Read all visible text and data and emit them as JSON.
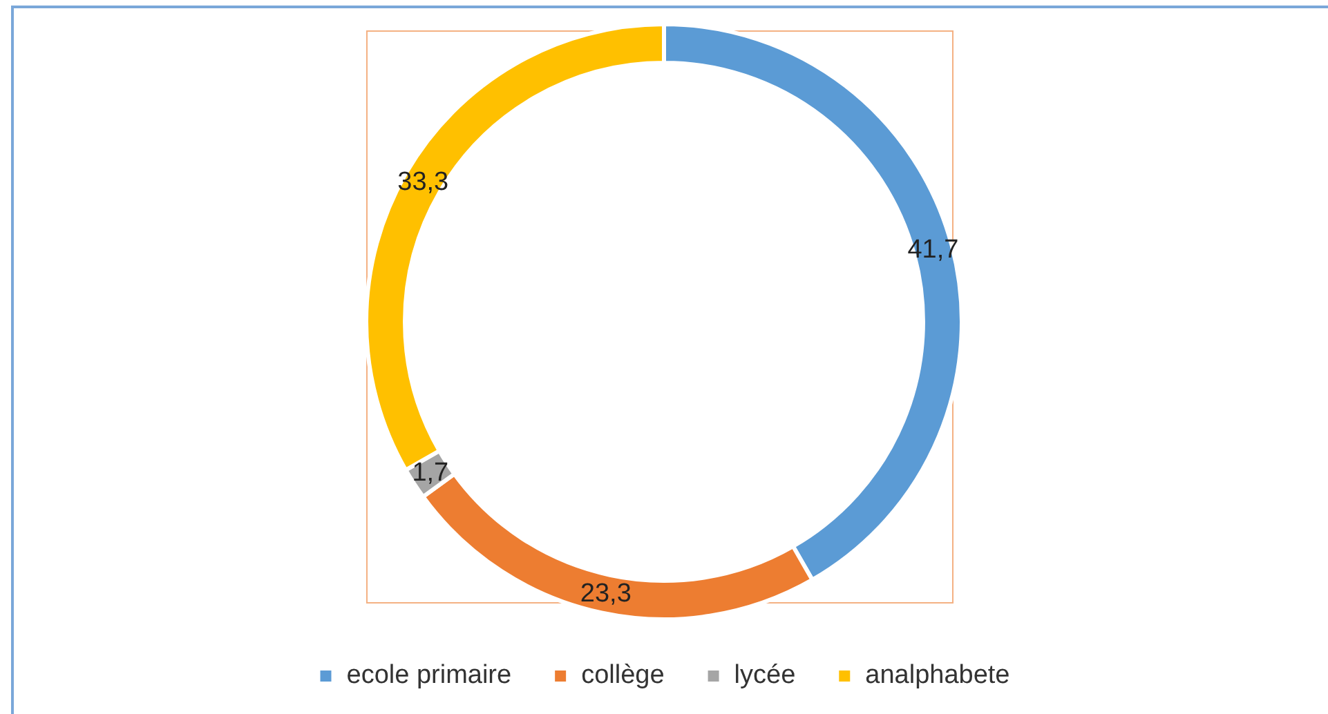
{
  "chart_data": {
    "type": "donut",
    "categories": [
      "ecole primaire",
      "collège",
      "lycée",
      "analphabete"
    ],
    "values": [
      41.7,
      23.3,
      1.7,
      33.3
    ],
    "colors": [
      "#5b9bd5",
      "#ed7d31",
      "#a5a5a5",
      "#ffc000"
    ],
    "value_labels": [
      "41,7",
      "23,3",
      "1,7",
      "33,3"
    ],
    "legend": "bottom"
  }
}
